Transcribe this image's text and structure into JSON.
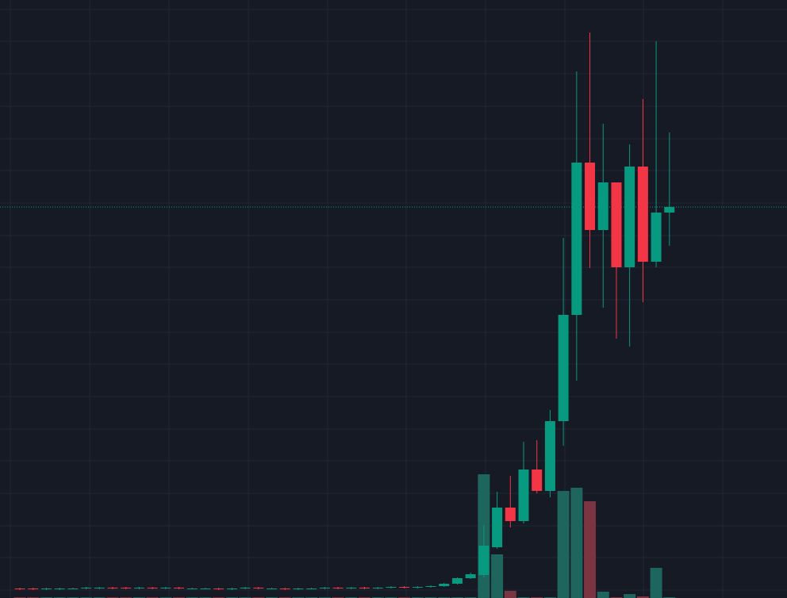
{
  "chart_data": {
    "type": "candlestick",
    "x": [
      0,
      1,
      2,
      3,
      4,
      5,
      6,
      7,
      8,
      9,
      10,
      11,
      12,
      13,
      14,
      15,
      16,
      17,
      18,
      19,
      20,
      21,
      22,
      23,
      24,
      25,
      26,
      27,
      28,
      29,
      30,
      31,
      32,
      33,
      34,
      35,
      36,
      37,
      38,
      39,
      40,
      41,
      42,
      43,
      44,
      45,
      46,
      47,
      48,
      49
    ],
    "open": [
      12,
      12,
      11,
      11,
      12,
      12,
      12,
      13,
      13,
      12,
      13,
      12,
      13,
      12,
      12,
      12,
      11,
      12,
      13,
      12,
      12,
      11,
      12,
      12,
      13,
      12,
      13,
      12,
      13,
      14,
      13,
      14,
      15,
      18,
      25,
      29,
      64,
      114,
      97,
      162,
      135,
      223,
      357,
      549,
      464,
      524,
      417,
      544,
      424,
      486
    ],
    "high": [
      13,
      13,
      13,
      13,
      13,
      14,
      14,
      14,
      14,
      14,
      14,
      14,
      14,
      13,
      13,
      13,
      13,
      14,
      14,
      13,
      13,
      13,
      13,
      14,
      14,
      14,
      14,
      14,
      15,
      15,
      15,
      16,
      19,
      26,
      32,
      92,
      134,
      154,
      197,
      199,
      237,
      454,
      664,
      713,
      598,
      524,
      572,
      629,
      702,
      587
    ],
    "low": [
      10,
      10,
      10,
      10,
      11,
      11,
      11,
      11,
      11,
      11,
      11,
      11,
      11,
      11,
      11,
      10,
      10,
      11,
      11,
      11,
      10,
      10,
      11,
      11,
      11,
      11,
      11,
      11,
      12,
      12,
      12,
      13,
      14,
      17,
      24,
      26,
      62,
      89,
      94,
      132,
      127,
      192,
      274,
      416,
      366,
      327,
      317,
      373,
      417,
      444
    ],
    "close": [
      11,
      11,
      12,
      12,
      12,
      13,
      13,
      12,
      12,
      13,
      12,
      13,
      12,
      12,
      12,
      11,
      12,
      13,
      12,
      12,
      11,
      12,
      12,
      13,
      12,
      13,
      12,
      13,
      14,
      13,
      14,
      15,
      18,
      25,
      30,
      66,
      114,
      97,
      162,
      135,
      223,
      357,
      549,
      464,
      524,
      417,
      544,
      424,
      486,
      493
    ],
    "volume": [
      1,
      1,
      1,
      1,
      1,
      1,
      1,
      1,
      1,
      1,
      1,
      1,
      1,
      1,
      1,
      1,
      1,
      1,
      1,
      1,
      1,
      1,
      1,
      1,
      1,
      1,
      1,
      1,
      1,
      1,
      1,
      1,
      1,
      1,
      1,
      156,
      55,
      9,
      1,
      1,
      1,
      135,
      139,
      122,
      8,
      1,
      5,
      2,
      38,
      1
    ],
    "xlim": [
      -1.5,
      57.87
    ],
    "xticks": [
      -0.72,
      5.27,
      11.25,
      17.24,
      23.22,
      29.14,
      35.13,
      41.11,
      47.04,
      53.02
    ],
    "ylim": [
      0,
      754
    ],
    "yticks": [
      10,
      51,
      91,
      132,
      173,
      213,
      254,
      295,
      335,
      376,
      417,
      457,
      498,
      539,
      579,
      620,
      661,
      702,
      742
    ],
    "y2lim": [
      0,
      754
    ],
    "grid": true,
    "last_price_line": true,
    "up_color": "#089981",
    "down_color": "#f23645",
    "volume_up_color": "#1e665d",
    "volume_down_color": "#7b3441",
    "background": "#161a25",
    "grid_color": "#232734"
  }
}
